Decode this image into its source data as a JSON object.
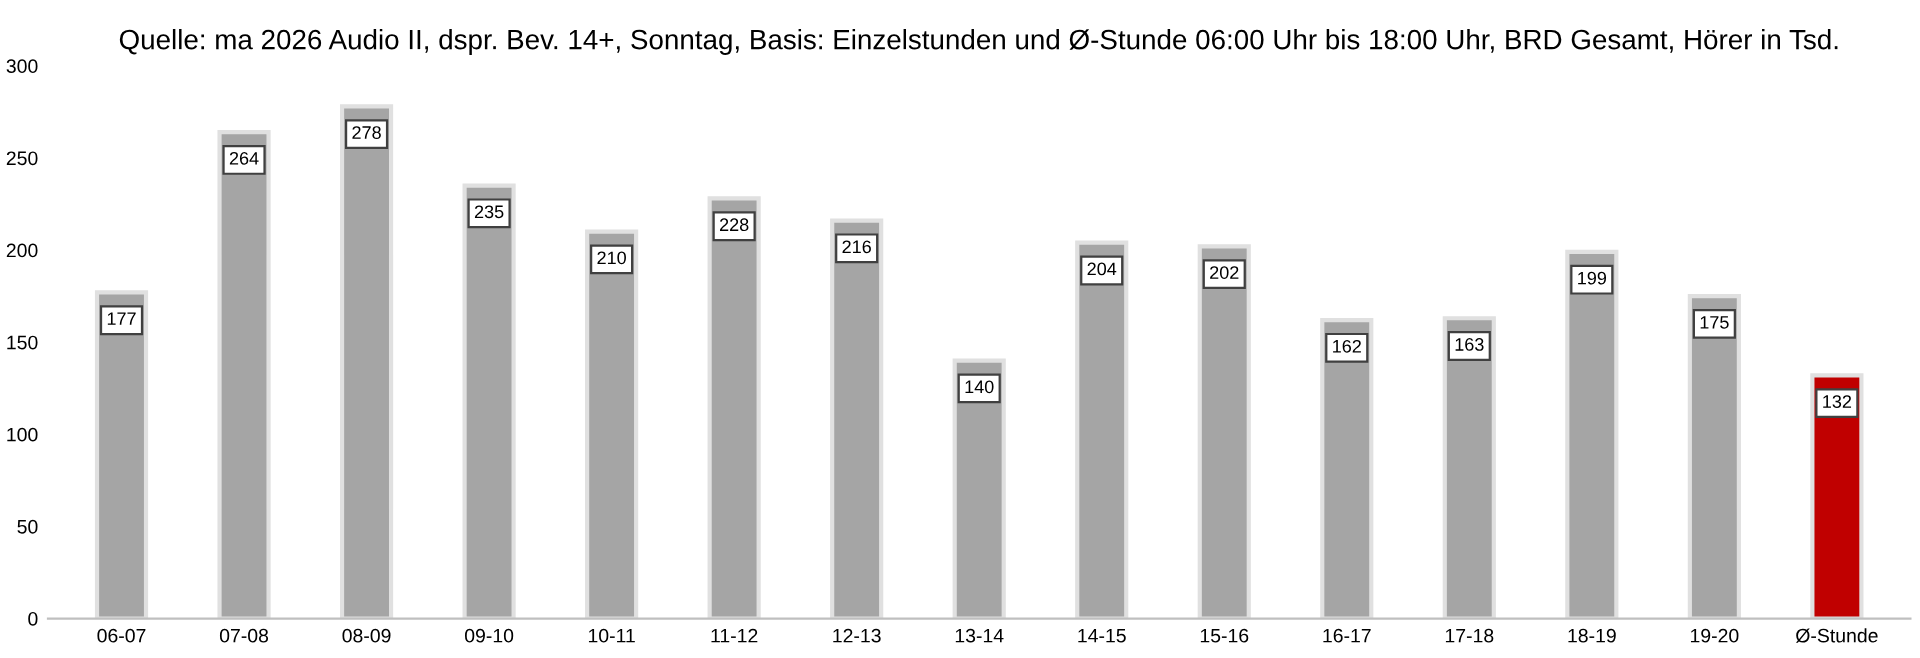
{
  "chart_data": {
    "type": "bar",
    "title": "Quelle: ma 2026 Audio II, dspr. Bev. 14+, Sonntag, Basis: Einzelstunden und Ø-Stunde 06:00 Uhr bis 18:00 Uhr, BRD Gesamt, Hörer in Tsd.",
    "categories": [
      "06-07",
      "07-08",
      "08-09",
      "09-10",
      "10-11",
      "11-12",
      "12-13",
      "13-14",
      "14-15",
      "15-16",
      "16-17",
      "17-18",
      "18-19",
      "19-20",
      "Ø-Stunde"
    ],
    "values": [
      177,
      264,
      278,
      235,
      210,
      228,
      216,
      140,
      204,
      202,
      162,
      163,
      199,
      175,
      132
    ],
    "colors": [
      "#a5a5a5",
      "#a5a5a5",
      "#a5a5a5",
      "#a5a5a5",
      "#a5a5a5",
      "#a5a5a5",
      "#a5a5a5",
      "#a5a5a5",
      "#a5a5a5",
      "#a5a5a5",
      "#a5a5a5",
      "#a5a5a5",
      "#a5a5a5",
      "#a5a5a5",
      "#c00000"
    ],
    "ylim": [
      0,
      300
    ],
    "yticks": [
      0,
      50,
      100,
      150,
      200,
      250,
      300
    ],
    "grid": false,
    "data_labels": true
  }
}
